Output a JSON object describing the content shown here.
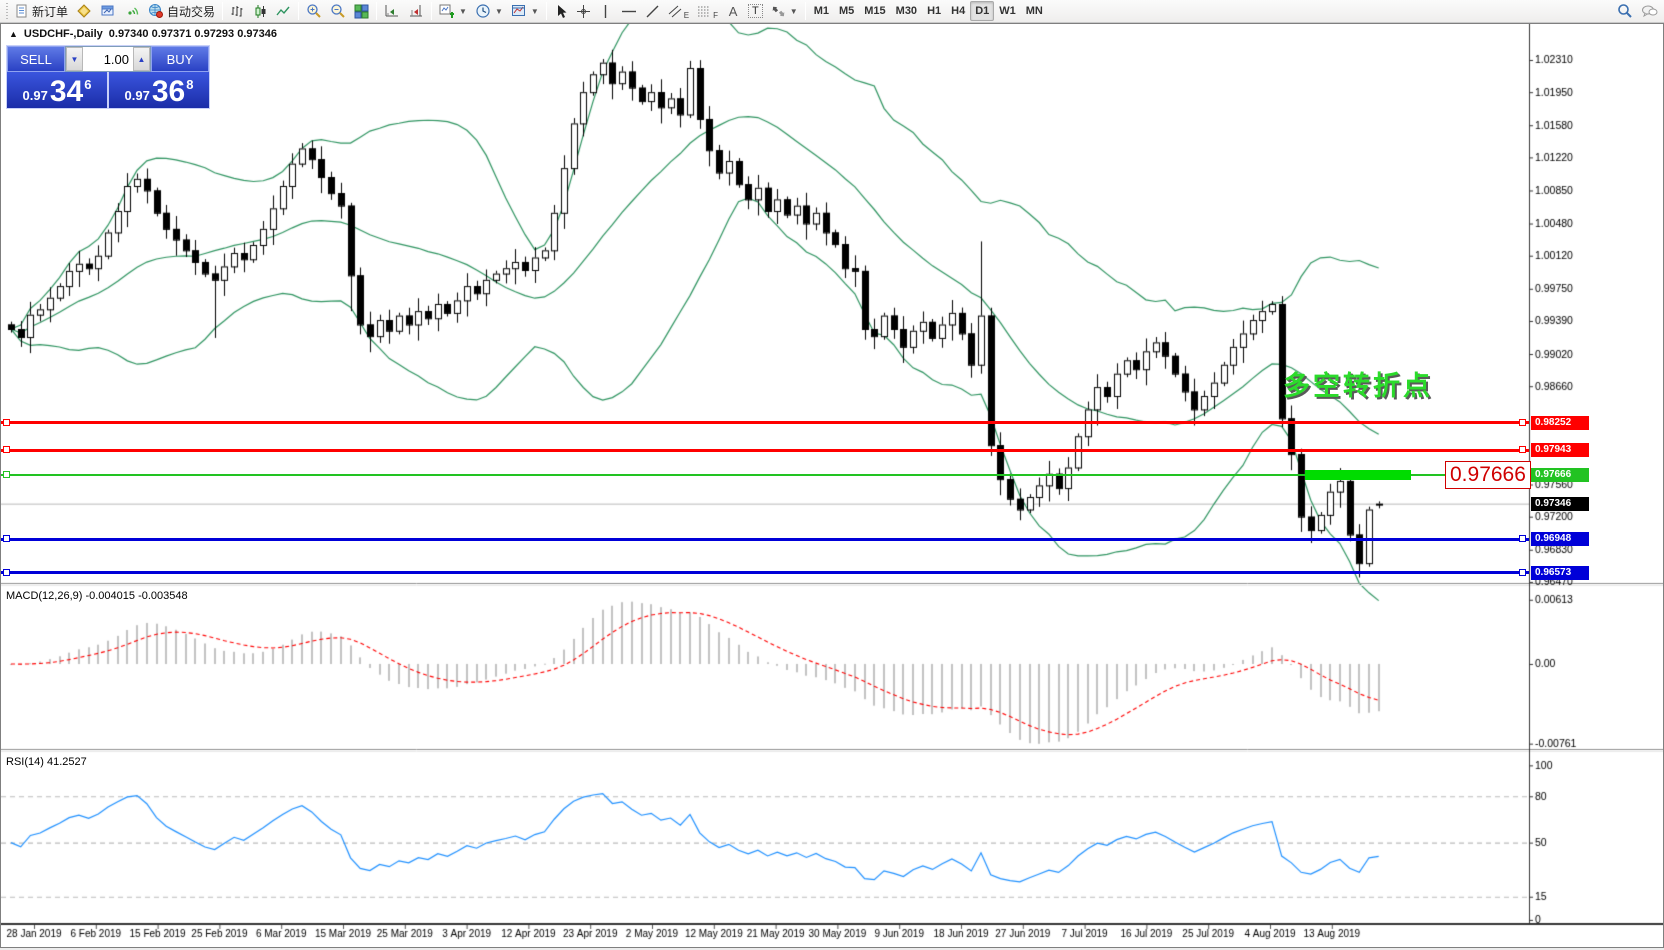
{
  "toolbar": {
    "new_order_label": "新订单",
    "auto_trading_label": "自动交易",
    "letter_e": "E",
    "letter_f": "F",
    "letter_a": "A",
    "letter_t": "T",
    "timeframes": [
      "M1",
      "M5",
      "M15",
      "M30",
      "H1",
      "H4",
      "D1",
      "W1",
      "MN"
    ],
    "active_timeframe": "D1"
  },
  "header": {
    "title_text": "USDCHF-,Daily",
    "ohlc_text": "0.97340 0.97371 0.97293 0.97346"
  },
  "trade_panel": {
    "sell_label": "SELL",
    "buy_label": "BUY",
    "volume": "1.00",
    "sell_small": "0.97",
    "sell_big": "34",
    "sell_sup": "6",
    "buy_small": "0.97",
    "buy_big": "36",
    "buy_sup": "8"
  },
  "indicators": {
    "macd_label": "MACD(12,26,9) -0.004015 -0.003548",
    "rsi_label": "RSI(14) 41.2527"
  },
  "annotations": {
    "turning_point_text": "多空转折点",
    "price_flag_text": "0.97666",
    "current_price": {
      "price": 0.97346,
      "label": "0.97346",
      "color": "#000000"
    },
    "hlines": [
      {
        "price": 0.98252,
        "label": "0.98252",
        "color": "#FF0000",
        "thickness": 3
      },
      {
        "price": 0.97943,
        "label": "0.97943",
        "color": "#FF0000",
        "thickness": 3
      },
      {
        "price": 0.97666,
        "label": "0.97666",
        "color": "#22C322",
        "thickness": 2
      },
      {
        "price": 0.96948,
        "label": "0.96948",
        "color": "#0000D8",
        "thickness": 3
      },
      {
        "price": 0.96573,
        "label": "0.96573",
        "color": "#0000D8",
        "thickness": 3
      }
    ]
  },
  "axes": {
    "price_ticks": [
      "1.02310",
      "1.01950",
      "1.01580",
      "1.01220",
      "1.00850",
      "1.00480",
      "1.00120",
      "0.99750",
      "0.99390",
      "0.99020",
      "0.98660",
      "0.97560",
      "0.97200",
      "0.96830",
      "0.96470"
    ],
    "macd_ticks": [
      {
        "label": "0.00613",
        "value": 0.00613
      },
      {
        "label": "0.00",
        "value": 0
      },
      {
        "label": "-0.00761",
        "value": -0.00761
      }
    ],
    "rsi_ticks": [
      {
        "label": "100",
        "value": 100
      },
      {
        "label": "80",
        "value": 80
      },
      {
        "label": "50",
        "value": 50
      },
      {
        "label": "15",
        "value": 15
      },
      {
        "label": "0",
        "value": 0
      }
    ],
    "rsi_levels": [
      80,
      50,
      15
    ],
    "dates": [
      "28 Jan 2019",
      "6 Feb 2019",
      "15 Feb 2019",
      "25 Feb 2019",
      "6 Mar 2019",
      "15 Mar 2019",
      "25 Mar 2019",
      "3 Apr 2019",
      "12 Apr 2019",
      "23 Apr 2019",
      "2 May 2019",
      "12 May 2019",
      "21 May 2019",
      "30 May 2019",
      "9 Jun 2019",
      "18 Jun 2019",
      "27 Jun 2019",
      "7 Jul 2019",
      "16 Jul 2019",
      "25 Jul 2019",
      "4 Aug 2019",
      "13 Aug 2019"
    ]
  },
  "chart_data": {
    "type": "candlestick",
    "symbol": "USDCHF-",
    "timeframe": "Daily",
    "start_date": "28 Jan 2019",
    "end_date": "13 Aug 2019",
    "ylim": [
      0.96458,
      1.02556
    ],
    "first_open": 0.9935,
    "closes": [
      0.993,
      0.9921,
      0.9946,
      0.9952,
      0.9965,
      0.9978,
      0.9995,
      1.0003,
      0.9998,
      1.0012,
      1.0038,
      1.0062,
      1.009,
      1.0098,
      1.0085,
      1.006,
      1.0042,
      1.003,
      1.0018,
      1.0005,
      0.9992,
      0.9985,
      1.0,
      1.0015,
      1.0008,
      1.0024,
      1.0042,
      1.0065,
      1.009,
      1.0115,
      1.0132,
      1.012,
      1.01,
      1.0082,
      1.0068,
      0.999,
      0.9935,
      0.9922,
      0.994,
      0.9928,
      0.9945,
      0.9935,
      0.995,
      0.9942,
      0.9958,
      0.9948,
      0.9962,
      0.9978,
      0.997,
      0.9985,
      0.9992,
      0.9998,
      1.0005,
      0.9996,
      1.001,
      1.0018,
      1.006,
      1.011,
      1.016,
      1.0195,
      1.0215,
      1.0228,
      1.0205,
      1.0218,
      1.02,
      1.0185,
      1.0195,
      1.0178,
      1.0188,
      1.017,
      1.0222,
      1.0165,
      1.013,
      1.0105,
      1.0118,
      1.0092,
      1.0075,
      1.0088,
      1.0062,
      1.0075,
      1.0058,
      1.0068,
      1.0048,
      1.006,
      1.0038,
      1.0025,
      0.9998,
      0.9995,
      0.993,
      0.9922,
      0.9945,
      0.993,
      0.991,
      0.9928,
      0.9938,
      0.992,
      0.9935,
      0.9948,
      0.9925,
      0.989,
      0.9945,
      0.98,
      0.9762,
      0.974,
      0.9728,
      0.9742,
      0.9755,
      0.9768,
      0.9752,
      0.9775,
      0.981,
      0.984,
      0.9865,
      0.9855,
      0.988,
      0.9895,
      0.9885,
      0.9905,
      0.9915,
      0.99,
      0.988,
      0.986,
      0.984,
      0.9855,
      0.987,
      0.989,
      0.991,
      0.9925,
      0.994,
      0.995,
      0.9958,
      0.983,
      0.979,
      0.972,
      0.9705,
      0.9722,
      0.9748,
      0.976,
      0.97,
      0.9668,
      0.9728,
      0.97346
    ],
    "overrides": {
      "21": {
        "l": 0.992
      },
      "30": {
        "h": 1.0138
      },
      "35": {
        "l": 0.995
      },
      "61": {
        "h": 1.0232
      },
      "70": {
        "h": 1.023
      },
      "88": {
        "l": 0.9918
      },
      "100": {
        "h": 1.0028,
        "l": 0.988
      },
      "101": {
        "l": 0.9788
      },
      "104": {
        "l": 0.9716
      },
      "131": {
        "l": 0.982
      },
      "133": {
        "l": 0.9703
      },
      "139": {
        "l": 0.9652
      },
      "141": {
        "o": 0.9734,
        "h": 0.97371,
        "l": 0.97293,
        "c": 0.97346
      }
    },
    "bollinger": {
      "period": 20,
      "deviation": 2
    },
    "macd": {
      "fast": 12,
      "slow": 26,
      "signal_period": 9,
      "current": -0.004015,
      "signal_current": -0.003548,
      "ylim": [
        -0.00812,
        0.00735
      ]
    },
    "rsi": {
      "period": 14,
      "current": 41.2527,
      "ylim": [
        -2,
        108
      ]
    },
    "colors": {
      "bull_fill": "#FFFFFF",
      "bear_fill": "#000000",
      "outline": "#000000",
      "bollinger": "#2E9460",
      "macd_hist": "#C2C2C2",
      "macd_signal": "#FF0000",
      "rsi_line": "#1E90FF",
      "level_dash": "#BBBBBB",
      "current_line": "#B8B8B8"
    }
  }
}
